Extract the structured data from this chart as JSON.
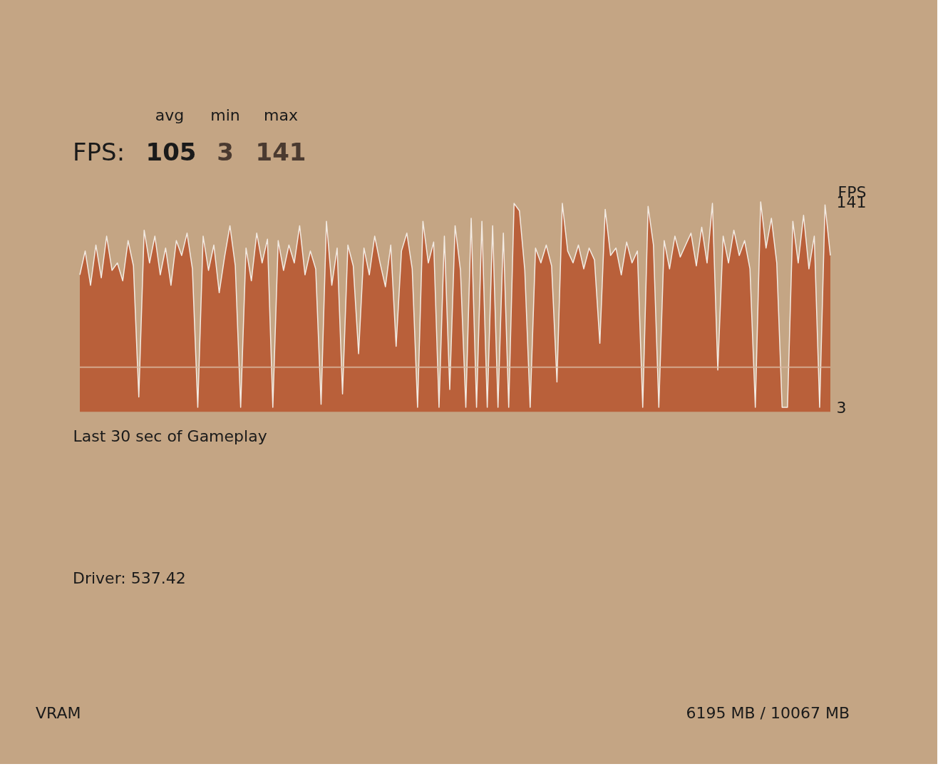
{
  "chart_data": {
    "type": "area",
    "xlabel": "Last 30 sec of Gameplay",
    "ylabel": "FPS",
    "annotations": [
      "avg",
      "min",
      "max",
      "FPS:",
      "105",
      "3",
      "141",
      "Driver: 537.42",
      "VRAM",
      "6195 MB / 10067 MB"
    ],
    "categories": [
      null,
      null,
      null,
      null,
      null,
      null,
      null,
      null,
      null,
      null,
      null,
      null,
      null,
      null,
      null,
      null,
      null,
      null,
      null,
      null,
      null,
      null,
      null,
      null,
      null,
      null,
      null,
      null,
      null,
      null,
      null,
      null,
      null,
      null,
      null,
      null,
      null,
      null,
      null,
      null,
      null,
      null,
      null,
      null,
      null,
      null,
      null,
      null,
      null,
      null,
      null,
      null,
      null,
      null,
      null,
      null,
      null,
      null,
      null,
      null,
      null,
      null,
      null,
      null,
      null,
      null,
      null,
      null,
      null,
      null,
      null,
      null,
      null,
      null,
      null,
      null,
      null,
      null,
      null,
      null,
      null,
      null,
      null,
      null,
      null,
      null,
      null,
      null,
      null,
      null,
      null,
      null,
      null,
      null,
      null,
      null,
      null,
      null,
      null,
      null,
      null,
      null,
      null,
      null,
      null,
      null,
      null,
      null,
      null,
      null,
      null,
      null,
      null,
      null,
      null,
      null,
      null,
      null,
      null,
      null,
      null,
      null,
      null,
      null,
      null,
      null,
      null,
      null,
      null,
      null,
      null,
      null,
      null,
      null,
      null,
      null,
      null,
      null,
      null,
      null,
      null
    ],
    "series": [
      {
        "color": "#b9603a",
        "values": [
          92,
          108,
          85,
          112,
          90,
          118,
          95,
          100,
          88,
          115,
          98,
          10,
          122,
          100,
          118,
          92,
          110,
          85,
          115,
          105,
          120,
          96,
          3,
          118,
          95,
          112,
          80,
          104,
          125,
          98,
          3,
          110,
          88,
          120,
          100,
          116,
          3,
          115,
          95,
          112,
          100,
          125,
          92,
          108,
          96,
          5,
          128,
          85,
          110,
          12,
          112,
          98,
          39,
          110,
          92,
          118,
          100,
          84,
          112,
          44,
          108,
          120,
          96,
          3,
          128,
          100,
          114,
          3,
          118,
          15,
          125,
          95,
          3,
          130,
          3,
          128,
          3,
          125,
          3,
          120,
          3,
          140,
          135,
          95,
          3,
          110,
          100,
          112,
          98,
          20,
          140,
          108,
          100,
          112,
          96,
          110,
          102,
          46,
          136,
          105,
          110,
          92,
          114,
          100,
          108,
          3,
          138,
          112,
          3,
          115,
          96,
          118,
          104,
          112,
          120,
          98,
          124,
          100,
          140,
          28,
          118,
          100,
          122,
          105,
          115,
          96,
          3,
          141,
          110,
          130,
          100,
          3,
          3,
          128,
          100,
          132,
          96,
          118,
          3,
          139,
          105
        ]
      }
    ],
    "ylim": [
      3,
      141
    ],
    "yticks": [
      3,
      141
    ],
    "ref_lines": [
      {
        "axis": "y",
        "value": 30,
        "color": "#d9b9a0"
      }
    ],
    "tick_labels": "y",
    "grid": false
  }
}
